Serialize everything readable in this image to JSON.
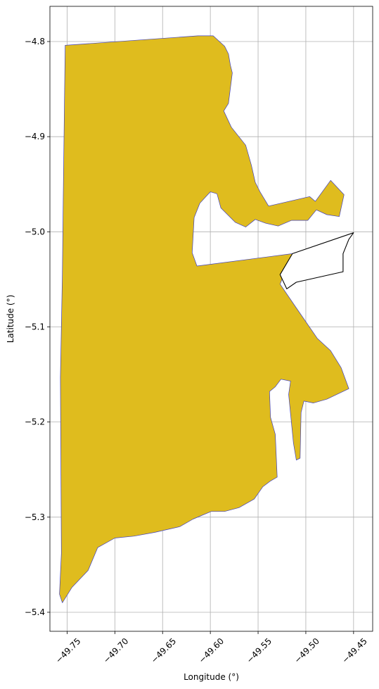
{
  "chart_data": {
    "type": "map",
    "xlabel": "Longitude (°)",
    "ylabel": "Latitude (°)",
    "xlim": [
      -49.768,
      -49.43
    ],
    "ylim": [
      -5.42,
      -4.763
    ],
    "grid": true,
    "xticks": [
      -49.75,
      -49.7,
      -49.65,
      -49.6,
      -49.55,
      -49.5,
      -49.45
    ],
    "xtick_labels": [
      "−49.75",
      "−49.70",
      "−49.65",
      "−49.60",
      "−49.55",
      "−49.50",
      "−49.45"
    ],
    "yticks": [
      -4.8,
      -4.9,
      -5.0,
      -5.1,
      -5.2,
      -5.3,
      -5.4
    ],
    "ytick_labels": [
      "−4.8",
      "−4.9",
      "−5.0",
      "−5.1",
      "−5.2",
      "−5.3",
      "−5.4"
    ],
    "regions": [
      {
        "id": "main-region",
        "fill": "#dfbc1e",
        "edge": "#4040c0",
        "polygon": [
          [
            -49.752,
            -4.804
          ],
          [
            -49.613,
            -4.794
          ],
          [
            -49.597,
            -4.794
          ],
          [
            -49.585,
            -4.805
          ],
          [
            -49.581,
            -4.813
          ],
          [
            -49.579,
            -4.825
          ],
          [
            -49.577,
            -4.833
          ],
          [
            -49.581,
            -4.865
          ],
          [
            -49.586,
            -4.873
          ],
          [
            -49.578,
            -4.89
          ],
          [
            -49.563,
            -4.909
          ],
          [
            -49.557,
            -4.93
          ],
          [
            -49.553,
            -4.948
          ],
          [
            -49.548,
            -4.958
          ],
          [
            -49.539,
            -4.973
          ],
          [
            -49.496,
            -4.963
          ],
          [
            -49.49,
            -4.968
          ],
          [
            -49.474,
            -4.946
          ],
          [
            -49.46,
            -4.961
          ],
          [
            -49.465,
            -4.984
          ],
          [
            -49.478,
            -4.982
          ],
          [
            -49.489,
            -4.977
          ],
          [
            -49.498,
            -4.988
          ],
          [
            -49.515,
            -4.988
          ],
          [
            -49.529,
            -4.994
          ],
          [
            -49.542,
            -4.991
          ],
          [
            -49.553,
            -4.987
          ],
          [
            -49.563,
            -4.995
          ],
          [
            -49.574,
            -4.99
          ],
          [
            -49.589,
            -4.975
          ],
          [
            -49.593,
            -4.96
          ],
          [
            -49.6,
            -4.958
          ],
          [
            -49.611,
            -4.97
          ],
          [
            -49.617,
            -4.985
          ],
          [
            -49.619,
            -5.022
          ],
          [
            -49.614,
            -5.036
          ],
          [
            -49.514,
            -5.023
          ],
          [
            -49.527,
            -5.055
          ],
          [
            -49.51,
            -5.08
          ],
          [
            -49.488,
            -5.112
          ],
          [
            -49.474,
            -5.125
          ],
          [
            -49.463,
            -5.143
          ],
          [
            -49.455,
            -5.165
          ],
          [
            -49.478,
            -5.176
          ],
          [
            -49.492,
            -5.18
          ],
          [
            -49.502,
            -5.178
          ],
          [
            -49.505,
            -5.19
          ],
          [
            -49.506,
            -5.238
          ],
          [
            -49.51,
            -5.24
          ],
          [
            -49.513,
            -5.222
          ],
          [
            -49.518,
            -5.171
          ],
          [
            -49.516,
            -5.157
          ],
          [
            -49.526,
            -5.155
          ],
          [
            -49.532,
            -5.163
          ],
          [
            -49.538,
            -5.168
          ],
          [
            -49.537,
            -5.195
          ],
          [
            -49.532,
            -5.213
          ],
          [
            -49.53,
            -5.258
          ],
          [
            -49.537,
            -5.262
          ],
          [
            -49.545,
            -5.268
          ],
          [
            -49.554,
            -5.281
          ],
          [
            -49.57,
            -5.29
          ],
          [
            -49.585,
            -5.294
          ],
          [
            -49.599,
            -5.294
          ],
          [
            -49.618,
            -5.302
          ],
          [
            -49.632,
            -5.31
          ],
          [
            -49.658,
            -5.316
          ],
          [
            -49.68,
            -5.32
          ],
          [
            -49.7,
            -5.322
          ],
          [
            -49.718,
            -5.332
          ],
          [
            -49.728,
            -5.356
          ],
          [
            -49.745,
            -5.374
          ],
          [
            -49.755,
            -5.39
          ],
          [
            -49.758,
            -5.381
          ],
          [
            -49.756,
            -5.338
          ],
          [
            -49.757,
            -5.153
          ],
          [
            -49.755,
            -5.045
          ],
          [
            -49.754,
            -4.96
          ],
          [
            -49.752,
            -4.804
          ]
        ]
      },
      {
        "id": "outlined-region",
        "fill": "#ffffff",
        "edge": "#000000",
        "polygon": [
          [
            -49.514,
            -5.023
          ],
          [
            -49.45,
            -5.001
          ],
          [
            -49.455,
            -5.008
          ],
          [
            -49.461,
            -5.023
          ],
          [
            -49.461,
            -5.042
          ],
          [
            -49.51,
            -5.053
          ],
          [
            -49.52,
            -5.06
          ],
          [
            -49.527,
            -5.045
          ],
          [
            -49.514,
            -5.023
          ]
        ]
      }
    ]
  }
}
